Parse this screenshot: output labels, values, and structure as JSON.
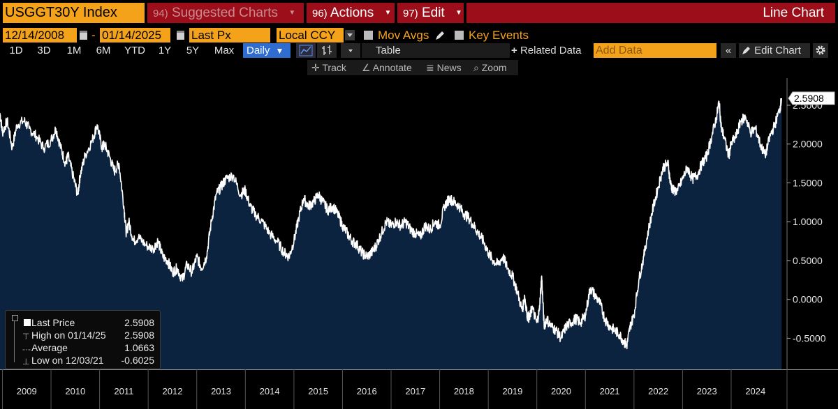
{
  "header": {
    "ticker": "USGGT30Y Index",
    "suggested_num": "94)",
    "suggested_label": "Suggested Charts",
    "actions_num": "96)",
    "actions_label": "Actions",
    "edit_num": "97)",
    "edit_label": "Edit",
    "view_label": "Line Chart"
  },
  "controls": {
    "start_date": "12/14/2008",
    "dash": "-",
    "end_date": "01/14/2025",
    "field": "Last Px",
    "currency": "Local CCY",
    "mov_avgs": "Mov Avgs",
    "key_events": "Key Events"
  },
  "range_bar": {
    "ranges": [
      "1D",
      "3D",
      "1M",
      "6M",
      "YTD",
      "1Y",
      "5Y",
      "Max"
    ],
    "frequency": "Daily",
    "table": "Table",
    "related": "Related Data",
    "add_data_placeholder": "Add Data",
    "collapse": "«",
    "edit_chart": "Edit Chart"
  },
  "tools": {
    "track": "Track",
    "annotate": "Annotate",
    "news": "News",
    "zoom": "Zoom"
  },
  "legend": {
    "last_price_label": "Last Price",
    "last_price_value": "2.5908",
    "high_label": "High on 01/14/25",
    "high_value": "2.5908",
    "average_label": "Average",
    "average_value": "1.0663",
    "low_label": "Low on 12/03/21",
    "low_value": "-0.6025"
  },
  "colors": {
    "accent_orange": "#f5a21b",
    "menu_red": "#9c0f1a",
    "area_fill": "#0c2340",
    "line": "#ffffff",
    "active_blue": "#2f6dd0"
  },
  "chart_data": {
    "type": "area",
    "last_value_label": "2.5908",
    "y_ticks": [
      "2.5000",
      "2.0000",
      "1.5000",
      "1.0000",
      "0.5000",
      "0.0000",
      "-0.5000"
    ],
    "x_ticks": [
      "2009",
      "2010",
      "2011",
      "2012",
      "2013",
      "2014",
      "2015",
      "2016",
      "2017",
      "2018",
      "2019",
      "2020",
      "2021",
      "2022",
      "2023",
      "2024"
    ],
    "ylim": [
      -0.9,
      2.85
    ],
    "xlim": [
      2008.95,
      2025.15
    ],
    "y_axis_side": "right",
    "grid": false,
    "legend_placement": "bottom-left",
    "series": [
      {
        "x": [
          2008.95,
          2009.0,
          2009.1,
          2009.2,
          2009.3,
          2009.45,
          2009.55,
          2009.7,
          2009.85,
          2010.0,
          2010.1,
          2010.2,
          2010.3,
          2010.35,
          2010.45,
          2010.55,
          2010.6,
          2010.7,
          2010.85,
          2010.95,
          2011.05,
          2011.1,
          2011.2,
          2011.3,
          2011.4,
          2011.5,
          2011.55,
          2011.6,
          2011.7,
          2011.8,
          2011.95,
          2012.1,
          2012.2,
          2012.3,
          2012.4,
          2012.5,
          2012.6,
          2012.7,
          2012.8,
          2012.9,
          2013.0,
          2013.1,
          2013.2,
          2013.3,
          2013.4,
          2013.5,
          2013.6,
          2013.75,
          2013.9,
          2014.0,
          2014.1,
          2014.2,
          2014.35,
          2014.5,
          2014.65,
          2014.8,
          2014.9,
          2015.0,
          2015.1,
          2015.2,
          2015.3,
          2015.4,
          2015.5,
          2015.6,
          2015.7,
          2015.8,
          2015.9,
          2016.0,
          2016.1,
          2016.2,
          2016.3,
          2016.4,
          2016.5,
          2016.6,
          2016.7,
          2016.8,
          2016.9,
          2017.0,
          2017.1,
          2017.2,
          2017.3,
          2017.4,
          2017.5,
          2017.6,
          2017.7,
          2017.8,
          2017.9,
          2018.0,
          2018.1,
          2018.2,
          2018.3,
          2018.4,
          2018.5,
          2018.6,
          2018.7,
          2018.8,
          2018.9,
          2019.0,
          2019.1,
          2019.2,
          2019.3,
          2019.4,
          2019.5,
          2019.6,
          2019.7,
          2019.75,
          2019.8,
          2019.85,
          2019.9,
          2020.0,
          2020.05,
          2020.1,
          2020.15,
          2020.2,
          2020.3,
          2020.4,
          2020.5,
          2020.6,
          2020.7,
          2020.8,
          2020.9,
          2021.0,
          2021.1,
          2021.2,
          2021.3,
          2021.4,
          2021.5,
          2021.6,
          2021.7,
          2021.8,
          2021.85,
          2021.92,
          2022.0,
          2022.1,
          2022.2,
          2022.3,
          2022.4,
          2022.5,
          2022.6,
          2022.7,
          2022.75,
          2022.8,
          2022.9,
          2023.0,
          2023.1,
          2023.2,
          2023.3,
          2023.4,
          2023.5,
          2023.6,
          2023.7,
          2023.75,
          2023.8,
          2023.85,
          2023.95,
          2024.0,
          2024.1,
          2024.2,
          2024.3,
          2024.4,
          2024.5,
          2024.6,
          2024.7,
          2024.8,
          2024.9,
          2025.0,
          2025.04
        ],
        "y": [
          2.4,
          2.15,
          2.3,
          1.95,
          2.25,
          2.3,
          2.2,
          2.1,
          1.95,
          2.05,
          2.2,
          1.95,
          1.75,
          1.85,
          1.6,
          1.35,
          1.6,
          1.85,
          2.05,
          2.25,
          1.95,
          2.0,
          1.85,
          1.65,
          1.75,
          1.2,
          0.85,
          1.0,
          0.75,
          0.8,
          0.7,
          0.65,
          0.75,
          0.55,
          0.5,
          0.35,
          0.4,
          0.25,
          0.45,
          0.35,
          0.55,
          0.4,
          0.55,
          1.0,
          1.35,
          1.45,
          1.55,
          1.6,
          1.35,
          1.4,
          1.2,
          1.1,
          1.0,
          0.85,
          0.75,
          0.6,
          0.55,
          0.75,
          1.05,
          1.3,
          1.2,
          1.25,
          1.35,
          1.25,
          1.15,
          1.2,
          1.1,
          0.95,
          0.85,
          0.75,
          0.7,
          0.6,
          0.55,
          0.6,
          0.7,
          0.85,
          1.0,
          0.95,
          1.0,
          0.95,
          1.0,
          0.9,
          0.85,
          0.8,
          0.95,
          0.9,
          1.0,
          0.95,
          1.2,
          1.3,
          1.25,
          1.2,
          1.1,
          1.05,
          0.95,
          0.85,
          0.75,
          0.6,
          0.5,
          0.45,
          0.55,
          0.4,
          0.3,
          0.1,
          -0.15,
          0.05,
          -0.2,
          -0.25,
          -0.1,
          -0.3,
          -0.15,
          0.3,
          -0.35,
          -0.25,
          -0.35,
          -0.4,
          -0.5,
          -0.35,
          -0.3,
          -0.25,
          -0.3,
          -0.2,
          0.15,
          0.05,
          -0.05,
          -0.25,
          -0.35,
          -0.4,
          -0.45,
          -0.55,
          -0.6,
          -0.35,
          -0.2,
          0.25,
          0.55,
          0.9,
          1.2,
          1.45,
          1.7,
          1.75,
          1.5,
          1.4,
          1.4,
          1.55,
          1.7,
          1.55,
          1.6,
          1.75,
          1.85,
          2.1,
          2.35,
          2.55,
          2.2,
          2.1,
          1.85,
          2.0,
          2.1,
          2.3,
          2.35,
          2.15,
          2.2,
          2.0,
          1.85,
          2.1,
          2.25,
          2.45,
          2.59
        ]
      }
    ]
  }
}
